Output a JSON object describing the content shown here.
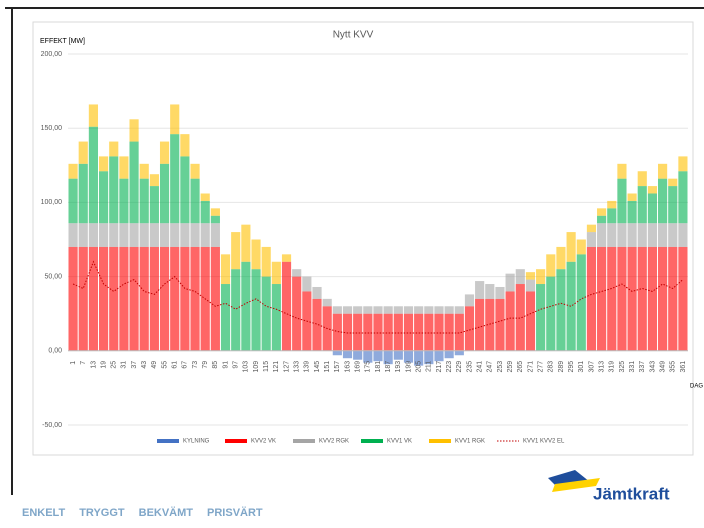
{
  "chart_data": {
    "type": "bar",
    "stacked": true,
    "title": "Nytt KVV",
    "y_label": "EFFEKT [MW]",
    "x_label": "DAG",
    "categories": [
      "1",
      "7",
      "13",
      "19",
      "25",
      "31",
      "37",
      "43",
      "49",
      "55",
      "61",
      "67",
      "73",
      "79",
      "85",
      "91",
      "97",
      "103",
      "109",
      "115",
      "121",
      "127",
      "133",
      "139",
      "145",
      "151",
      "157",
      "163",
      "169",
      "175",
      "181",
      "187",
      "193",
      "199",
      "205",
      "211",
      "217",
      "223",
      "229",
      "235",
      "241",
      "247",
      "253",
      "259",
      "265",
      "271",
      "277",
      "283",
      "289",
      "295",
      "301",
      "307",
      "313",
      "319",
      "325",
      "331",
      "337",
      "343",
      "349",
      "355",
      "361"
    ],
    "ylim": [
      -50,
      200
    ],
    "yticks": [
      {
        "value": -50,
        "label": "-50,00"
      },
      {
        "value": 0,
        "label": "0,00"
      },
      {
        "value": 50,
        "label": "50,00"
      },
      {
        "value": 100,
        "label": "100,00"
      },
      {
        "value": 150,
        "label": "150,00"
      },
      {
        "value": 200,
        "label": "200,00"
      }
    ],
    "series": [
      {
        "name": "KYLNING",
        "color": "#4472c4",
        "values": [
          0,
          0,
          0,
          0,
          0,
          0,
          0,
          0,
          0,
          0,
          0,
          0,
          0,
          0,
          0,
          0,
          0,
          0,
          0,
          0,
          0,
          0,
          0,
          0,
          0,
          0,
          -3,
          -5,
          -6,
          -8,
          -7,
          -9,
          -6,
          -8,
          -10,
          -9,
          -7,
          -5,
          -3,
          0,
          0,
          0,
          0,
          0,
          0,
          0,
          0,
          0,
          0,
          0,
          0,
          0,
          0,
          0,
          0,
          0,
          0,
          0,
          0,
          0,
          0
        ]
      },
      {
        "name": "KVV2 VK",
        "color": "#ff0000",
        "values": [
          70,
          70,
          70,
          70,
          70,
          70,
          70,
          70,
          70,
          70,
          70,
          70,
          70,
          70,
          70,
          0,
          0,
          0,
          0,
          0,
          0,
          60,
          50,
          40,
          35,
          30,
          25,
          25,
          25,
          25,
          25,
          25,
          25,
          25,
          25,
          25,
          25,
          25,
          25,
          30,
          35,
          35,
          35,
          40,
          45,
          40,
          0,
          0,
          0,
          0,
          0,
          70,
          70,
          70,
          70,
          70,
          70,
          70,
          70,
          70,
          70
        ]
      },
      {
        "name": "KVV2 RGK",
        "color": "#a5a5a5",
        "values": [
          16,
          16,
          16,
          16,
          16,
          16,
          16,
          16,
          16,
          16,
          16,
          16,
          16,
          16,
          16,
          0,
          0,
          0,
          0,
          0,
          0,
          0,
          5,
          10,
          8,
          5,
          5,
          5,
          5,
          5,
          5,
          5,
          5,
          5,
          5,
          5,
          5,
          5,
          5,
          8,
          12,
          10,
          8,
          12,
          10,
          8,
          0,
          0,
          0,
          0,
          0,
          10,
          16,
          16,
          16,
          16,
          16,
          16,
          16,
          16,
          16
        ]
      },
      {
        "name": "KVV1 VK",
        "color": "#00b050",
        "values": [
          30,
          40,
          65,
          35,
          45,
          30,
          55,
          30,
          25,
          40,
          60,
          45,
          30,
          15,
          5,
          45,
          55,
          60,
          55,
          50,
          45,
          0,
          0,
          0,
          0,
          0,
          0,
          0,
          0,
          0,
          0,
          0,
          0,
          0,
          0,
          0,
          0,
          0,
          0,
          0,
          0,
          0,
          0,
          0,
          0,
          0,
          45,
          50,
          55,
          60,
          65,
          0,
          5,
          10,
          30,
          15,
          25,
          20,
          30,
          25,
          35
        ]
      },
      {
        "name": "KVV1 RGK",
        "color": "#ffc000",
        "values": [
          10,
          15,
          15,
          10,
          10,
          15,
          15,
          10,
          8,
          15,
          20,
          15,
          10,
          5,
          5,
          20,
          25,
          25,
          20,
          20,
          15,
          5,
          0,
          0,
          0,
          0,
          0,
          0,
          0,
          0,
          0,
          0,
          0,
          0,
          0,
          0,
          0,
          0,
          0,
          0,
          0,
          0,
          0,
          0,
          0,
          5,
          10,
          15,
          15,
          20,
          10,
          5,
          5,
          5,
          10,
          5,
          10,
          5,
          10,
          5,
          10
        ]
      },
      {
        "name": "KVV1 KVV2 EL",
        "color": "#c00000",
        "type": "line",
        "values": [
          45,
          42,
          60,
          45,
          40,
          45,
          48,
          40,
          38,
          45,
          50,
          42,
          40,
          35,
          30,
          32,
          28,
          32,
          35,
          30,
          28,
          25,
          22,
          20,
          18,
          15,
          13,
          12,
          12,
          12,
          12,
          12,
          12,
          12,
          12,
          12,
          12,
          12,
          12,
          14,
          16,
          18,
          20,
          22,
          22,
          25,
          28,
          30,
          32,
          30,
          35,
          38,
          40,
          42,
          45,
          40,
          42,
          40,
          45,
          42,
          48
        ]
      }
    ]
  },
  "footer": {
    "slogan": [
      "ENKELT",
      "TRYGGT",
      "BEKVÄMT",
      "PRISVÄRT"
    ],
    "logo": "Jämtkraft"
  }
}
